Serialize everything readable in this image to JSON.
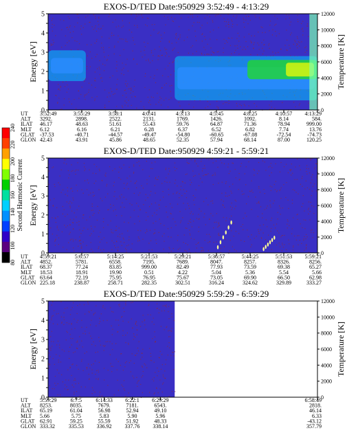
{
  "colors": {
    "background": "#3a2fc4",
    "speckle": "#8b2a3a",
    "cyan": "#00c8ff",
    "green": "#22dd22",
    "yellow": "#ffff00",
    "temperature_line": "#4a1fd6"
  },
  "colorbar": {
    "label": "Second Harmonic Current",
    "ticks": [
      "80",
      "100",
      "120",
      "140",
      "160",
      "180",
      "200",
      "220",
      "240"
    ],
    "colors": [
      "#000000",
      "#5a0080",
      "#3000c8",
      "#0040ff",
      "#0090ff",
      "#00d0ff",
      "#00e0a0",
      "#00d000",
      "#80ff00",
      "#ffff00",
      "#ffa000",
      "#ff4000",
      "#ff0000"
    ]
  },
  "chart_data": [
    {
      "type": "heatmap",
      "title": "EXOS-D/TED   Date:950929   3:52:49 - 4:13:29",
      "ylabel": "Energy [eV]",
      "y2label": "Temperature [K]",
      "ylim": [
        0,
        5
      ],
      "y2lim": [
        0,
        12000
      ],
      "yticks": [
        "0",
        "0.5",
        "1",
        "1.5",
        "2",
        "2.5",
        "3",
        "3.5",
        "4",
        "4.5",
        "5"
      ],
      "y2ticks": [
        "0",
        "2000",
        "4000",
        "6000",
        "8000",
        "10000",
        "12000"
      ],
      "orbit_rows": [
        "UT",
        "ALT",
        "ILAT",
        "MLT",
        "GLAT",
        "GLON"
      ],
      "orbit_columns": [
        [
          "3:52:49",
          "3292.",
          "46.17",
          "6.12",
          "-37.53",
          "42.43"
        ],
        [
          "3:55:29",
          "2898.",
          "48.63",
          "6.16",
          "-40.71",
          "43.91"
        ],
        [
          "3:58:1",
          "2522.",
          "51.61",
          "6.21",
          "-44.57",
          "45.86"
        ],
        [
          "4:0:41",
          "2131.",
          "55.43",
          "6.28",
          "-49.47",
          "48.65"
        ],
        [
          "4:3:13",
          "1769.",
          "59.76",
          "6.37",
          "-54.80",
          "52.35"
        ],
        [
          "4:5:45",
          "1426.",
          "64.87",
          "6.52",
          "-60.65",
          "57.94"
        ],
        [
          "4:8:25",
          "1092.",
          "71.36",
          "6.82",
          "-67.08",
          "68.14"
        ],
        [
          "4:10:57",
          "8.14",
          "78.94",
          "7.74",
          "-72.54",
          "87.00"
        ],
        [
          "4:13:29",
          "584.",
          "999.00",
          "13.76",
          "-74.73",
          "120.25"
        ]
      ],
      "features": [
        {
          "series": "cyan band",
          "x": [
            0.0,
            0.14
          ],
          "energy": [
            1.5,
            3.1
          ]
        },
        {
          "series": "cyan band",
          "x": [
            0.47,
            1.0
          ],
          "energy": [
            0.5,
            2.8
          ]
        },
        {
          "series": "green/yellow core",
          "x": [
            0.74,
            1.0
          ],
          "energy": [
            1.6,
            2.6
          ]
        },
        {
          "series": "green column",
          "x": [
            0.97,
            1.0
          ],
          "energy": [
            0.0,
            5.0
          ]
        }
      ]
    },
    {
      "type": "heatmap",
      "title": "EXOS-D/TED   Date:950929   4:59:21 - 5:59:21",
      "ylabel": "Energy [eV]",
      "y2label": "Temperature [K]",
      "ylim": [
        0,
        5
      ],
      "y2lim": [
        0,
        12000
      ],
      "yticks": [
        "0",
        "0.5",
        "1",
        "1.5",
        "2",
        "2.5",
        "3",
        "3.5",
        "4",
        "4.5",
        "5"
      ],
      "y2ticks": [
        "0",
        "2000",
        "4000",
        "6000",
        "8000",
        "10000",
        "12000"
      ],
      "orbit_rows": [
        "UT",
        "ALT",
        "ILAT",
        "MLT",
        "GLAT",
        "GLON"
      ],
      "orbit_columns": [
        [
          "4:59:21",
          "4852.",
          "68.37",
          "18.53",
          "63.64",
          "225.18"
        ],
        [
          "5:6:57",
          "5781.",
          "77.24",
          "18.91",
          "72.19",
          "238.87"
        ],
        [
          "5:14:25",
          "6558.",
          "83.85",
          "19.90",
          "75.95",
          "258.71"
        ],
        [
          "5:21:53",
          "7195.",
          "999.00",
          "0.51",
          "76.95",
          "282.35"
        ],
        [
          "5:29:21",
          "7689.",
          "82.49",
          "4.22",
          "75.67",
          "302.51"
        ],
        [
          "5:36:57",
          "8047.",
          "77.93",
          "5.04",
          "73.05",
          "316.24"
        ],
        [
          "5:44:25",
          "8257.",
          "73.59",
          "5.36",
          "69.90",
          "324.62"
        ],
        [
          "5:51:53",
          "8326.",
          "69.38",
          "5.54",
          "66.50",
          "329.89"
        ],
        [
          "5:59:21",
          "8256.",
          "65.27",
          "5.66",
          "62.98",
          "333.27"
        ]
      ],
      "features": [
        {
          "series": "temperature points",
          "x": [
            0.63,
            0.68
          ],
          "energy": [
            0.3,
            1.6
          ]
        },
        {
          "series": "temperature points",
          "x": [
            0.8,
            0.84
          ],
          "energy": [
            0.2,
            0.8
          ]
        }
      ]
    },
    {
      "type": "heatmap",
      "title": "EXOS-D/TED   Date:950929   5:59:29 - 6:59:29",
      "ylabel": "Energy [eV]",
      "y2label": "Temperature [K]",
      "ylim": [
        0,
        5
      ],
      "y2lim": [
        0,
        12000
      ],
      "yticks": [
        "0",
        "0.5",
        "1",
        "1.5",
        "2",
        "2.5",
        "3",
        "3.5",
        "4",
        "4.5",
        "5"
      ],
      "y2ticks": [
        "0",
        "2000",
        "4000",
        "6000",
        "8000",
        "10000",
        "12000"
      ],
      "orbit_rows": [
        "UT",
        "ALT",
        "ILAT",
        "MLT",
        "GLAT",
        "GLON"
      ],
      "orbit_columns": [
        [
          "5:59:29",
          "8253.",
          "65.19",
          "5.66",
          "62.91",
          "333.32"
        ],
        [
          "6:7:5",
          "8035.",
          "61.04",
          "5.75",
          "59.25",
          "335.53"
        ],
        [
          "6:14:33",
          "7679.",
          "56.98",
          "5.83",
          "55.59",
          "336.92"
        ],
        [
          "6:22:1",
          "7181.",
          "52.94",
          "5.90",
          "51.92",
          "337.76"
        ],
        [
          "6:29:29",
          "6543.",
          "49.10",
          "5.96",
          "48.33",
          "338.14"
        ],
        [
          "6:58:49",
          "2818.",
          "46.14",
          "6.33",
          "-43.12",
          "357.79"
        ]
      ],
      "data_extent_fraction": 0.47
    }
  ]
}
